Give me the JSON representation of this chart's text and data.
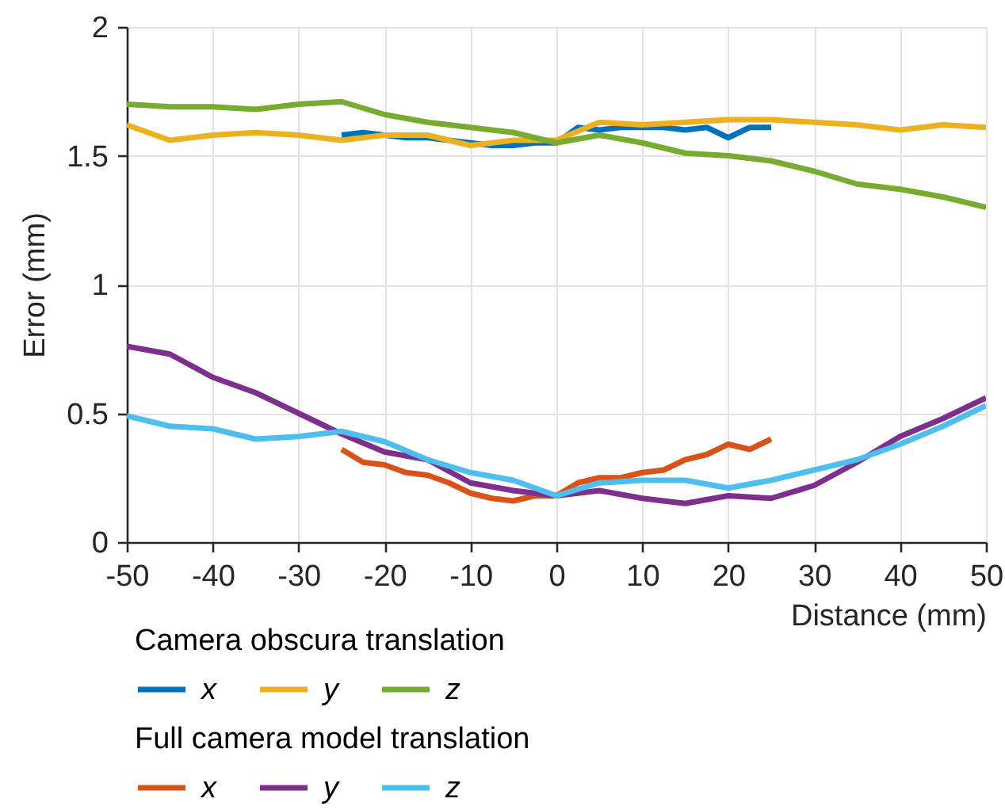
{
  "chart_data": {
    "type": "line",
    "xlabel": "Distance (mm)",
    "ylabel": "Error (mm)",
    "legend_title": [
      "Camera obscura translation",
      "Full camera model translation"
    ],
    "x": [
      -50,
      -45,
      -40,
      -35,
      -30,
      -25,
      -20,
      -15,
      -10,
      -5,
      0,
      5,
      10,
      15,
      20,
      25,
      30,
      35,
      40,
      45,
      50
    ],
    "series": [
      {
        "name": "x",
        "color": "#0072bd",
        "x": [
          -25,
          -22.5,
          -20,
          -17.5,
          -15,
          -12.5,
          -10,
          -7.5,
          -5,
          -2.5,
          0,
          2.5,
          5,
          7.5,
          10,
          12.5,
          15,
          17.5,
          20,
          22.5,
          25
        ],
        "values": [
          1.58,
          1.59,
          1.58,
          1.57,
          1.57,
          1.56,
          1.55,
          1.54,
          1.54,
          1.55,
          1.55,
          1.61,
          1.6,
          1.61,
          1.61,
          1.61,
          1.6,
          1.61,
          1.57,
          1.61,
          1.61
        ]
      },
      {
        "name": "y",
        "color": "#edb120",
        "values": [
          1.62,
          1.56,
          1.58,
          1.59,
          1.58,
          1.56,
          1.58,
          1.58,
          1.54,
          1.56,
          1.56,
          1.63,
          1.62,
          1.63,
          1.64,
          1.64,
          1.63,
          1.62,
          1.6,
          1.62,
          1.61
        ]
      },
      {
        "name": "z",
        "color": "#77ac30",
        "values": [
          1.7,
          1.69,
          1.69,
          1.68,
          1.7,
          1.71,
          1.66,
          1.63,
          1.61,
          1.59,
          1.55,
          1.58,
          1.55,
          1.51,
          1.5,
          1.48,
          1.44,
          1.39,
          1.37,
          1.34,
          1.3
        ]
      },
      {
        "name": "x",
        "color": "#d95319",
        "x": [
          -25,
          -22.5,
          -20,
          -17.5,
          -15,
          -12.5,
          -10,
          -7.5,
          -5,
          -2.5,
          0,
          2.5,
          5,
          7.5,
          10,
          12.5,
          15,
          17.5,
          20,
          22.5,
          25
        ],
        "values": [
          0.36,
          0.31,
          0.3,
          0.27,
          0.26,
          0.23,
          0.19,
          0.17,
          0.16,
          0.18,
          0.18,
          0.23,
          0.25,
          0.25,
          0.27,
          0.28,
          0.32,
          0.34,
          0.38,
          0.36,
          0.4
        ]
      },
      {
        "name": "y",
        "color": "#7e2f8e",
        "values": [
          0.76,
          0.73,
          0.64,
          0.58,
          0.5,
          0.42,
          0.35,
          0.32,
          0.23,
          0.2,
          0.18,
          0.2,
          0.17,
          0.15,
          0.18,
          0.17,
          0.22,
          0.31,
          0.41,
          0.48,
          0.56
        ]
      },
      {
        "name": "z",
        "color": "#4dbeee",
        "values": [
          0.49,
          0.45,
          0.44,
          0.4,
          0.41,
          0.43,
          0.39,
          0.32,
          0.27,
          0.24,
          0.18,
          0.23,
          0.24,
          0.24,
          0.21,
          0.24,
          0.28,
          0.32,
          0.38,
          0.45,
          0.53
        ]
      }
    ],
    "xlim": [
      -50,
      50
    ],
    "xticks": [
      -50,
      -40,
      -30,
      -20,
      -10,
      0,
      10,
      20,
      30,
      40,
      50
    ],
    "ylim": [
      0,
      2
    ],
    "yticks": [
      0,
      0.5,
      1,
      1.5,
      2
    ],
    "grid": true,
    "legend": "bottom",
    "marker": "none",
    "line_style": "solid"
  }
}
